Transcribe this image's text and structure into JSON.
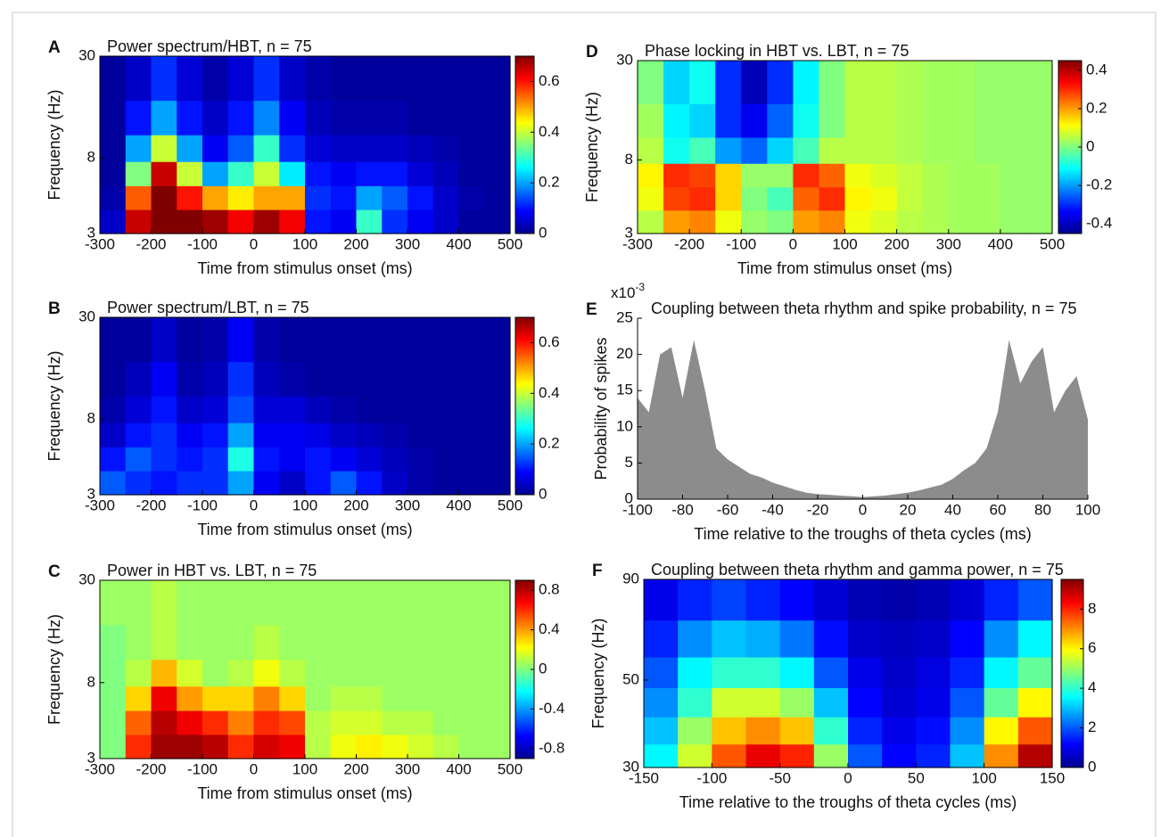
{
  "chart_data": [
    {
      "type": "heatmap",
      "label": "A",
      "title": "Power spectrum/HBT, n = 75",
      "xlabel": "Time from stimulus onset (ms)",
      "ylabel": "Frequency (Hz)",
      "x": [
        -275,
        -225,
        -175,
        -125,
        -75,
        -25,
        25,
        75,
        125,
        175,
        225,
        275,
        325,
        375,
        425,
        475
      ],
      "y": [
        3.5,
        4.8,
        6.5,
        9,
        13,
        22
      ],
      "z": [
        [
          0.05,
          0.65,
          0.7,
          0.7,
          0.68,
          0.62,
          0.68,
          0.62,
          0.1,
          0.08,
          0.3,
          0.12,
          0.08,
          0.05,
          0.02,
          0.02
        ],
        [
          0.03,
          0.55,
          0.7,
          0.6,
          0.5,
          0.45,
          0.5,
          0.5,
          0.12,
          0.1,
          0.2,
          0.15,
          0.1,
          0.05,
          0.03,
          0.02
        ],
        [
          0.02,
          0.35,
          0.65,
          0.4,
          0.2,
          0.3,
          0.4,
          0.25,
          0.1,
          0.08,
          0.1,
          0.1,
          0.06,
          0.04,
          0.02,
          0.02
        ],
        [
          0.02,
          0.2,
          0.4,
          0.2,
          0.08,
          0.15,
          0.3,
          0.12,
          0.06,
          0.05,
          0.05,
          0.05,
          0.04,
          0.03,
          0.02,
          0.02
        ],
        [
          0.02,
          0.1,
          0.2,
          0.1,
          0.05,
          0.1,
          0.18,
          0.08,
          0.04,
          0.03,
          0.03,
          0.03,
          0.02,
          0.02,
          0.02,
          0.02
        ],
        [
          0.02,
          0.05,
          0.12,
          0.06,
          0.03,
          0.06,
          0.12,
          0.05,
          0.03,
          0.02,
          0.02,
          0.02,
          0.02,
          0.02,
          0.02,
          0.02
        ]
      ],
      "xlim": [
        -300,
        500
      ],
      "xticks": [
        -300,
        -200,
        -100,
        0,
        100,
        200,
        300,
        400,
        500
      ],
      "ylim": [
        3,
        30
      ],
      "yticks": [
        3,
        8,
        30
      ],
      "log_y": true,
      "clim": [
        0,
        0.7
      ],
      "cticks": [
        0,
        0.2,
        0.4,
        0.6
      ],
      "colormap": "jet"
    },
    {
      "type": "heatmap",
      "label": "B",
      "title": "Power spectrum/LBT, n = 75",
      "xlabel": "Time from stimulus onset (ms)",
      "ylabel": "Frequency (Hz)",
      "x": [
        -275,
        -225,
        -175,
        -125,
        -75,
        -25,
        25,
        75,
        125,
        175,
        225,
        275,
        325,
        375,
        425,
        475
      ],
      "y": [
        3.5,
        4.8,
        6.5,
        9,
        13,
        22
      ],
      "z": [
        [
          0.15,
          0.12,
          0.1,
          0.12,
          0.12,
          0.2,
          0.08,
          0.05,
          0.1,
          0.15,
          0.1,
          0.05,
          0.03,
          0.02,
          0.02,
          0.02
        ],
        [
          0.1,
          0.15,
          0.12,
          0.1,
          0.12,
          0.28,
          0.1,
          0.08,
          0.1,
          0.08,
          0.06,
          0.04,
          0.03,
          0.02,
          0.02,
          0.02
        ],
        [
          0.05,
          0.1,
          0.12,
          0.08,
          0.1,
          0.2,
          0.08,
          0.08,
          0.07,
          0.05,
          0.04,
          0.03,
          0.02,
          0.02,
          0.02,
          0.02
        ],
        [
          0.03,
          0.06,
          0.1,
          0.05,
          0.06,
          0.14,
          0.06,
          0.06,
          0.04,
          0.03,
          0.02,
          0.02,
          0.02,
          0.02,
          0.02,
          0.02
        ],
        [
          0.02,
          0.04,
          0.08,
          0.03,
          0.04,
          0.12,
          0.04,
          0.03,
          0.02,
          0.02,
          0.02,
          0.02,
          0.02,
          0.02,
          0.02,
          0.02
        ],
        [
          0.02,
          0.02,
          0.05,
          0.02,
          0.03,
          0.08,
          0.03,
          0.02,
          0.02,
          0.02,
          0.02,
          0.02,
          0.02,
          0.02,
          0.02,
          0.02
        ]
      ],
      "xlim": [
        -300,
        500
      ],
      "xticks": [
        -300,
        -200,
        -100,
        0,
        100,
        200,
        300,
        400,
        500
      ],
      "ylim": [
        3,
        30
      ],
      "yticks": [
        3,
        8,
        30
      ],
      "log_y": true,
      "clim": [
        0,
        0.7
      ],
      "cticks": [
        0,
        0.2,
        0.4,
        0.6
      ],
      "colormap": "jet"
    },
    {
      "type": "heatmap",
      "label": "C",
      "title": "Power in HBT vs. LBT, n = 75",
      "xlabel": "Time from stimulus onset (ms)",
      "ylabel": "Frequency (Hz)",
      "x": [
        -275,
        -225,
        -175,
        -125,
        -75,
        -25,
        25,
        75,
        125,
        175,
        225,
        275,
        325,
        375,
        425,
        475
      ],
      "y": [
        3.5,
        4.8,
        6.5,
        9,
        13,
        22
      ],
      "z": [
        [
          0,
          0.6,
          0.85,
          0.85,
          0.8,
          0.6,
          0.75,
          0.7,
          0.1,
          0.2,
          0.25,
          0.2,
          0.15,
          0.1,
          0.05,
          0.05
        ],
        [
          0,
          0.5,
          0.8,
          0.7,
          0.6,
          0.45,
          0.6,
          0.55,
          0.1,
          0.15,
          0.15,
          0.1,
          0.1,
          0.05,
          0.05,
          0.05
        ],
        [
          0,
          0.3,
          0.7,
          0.4,
          0.3,
          0.3,
          0.45,
          0.3,
          0.05,
          0.1,
          0.1,
          0.05,
          0.05,
          0.05,
          0.05,
          0.05
        ],
        [
          0,
          0.1,
          0.35,
          0.15,
          0.05,
          0.1,
          0.2,
          0.1,
          0.05,
          0.05,
          0.05,
          0.05,
          0.05,
          0.05,
          0.05,
          0.05
        ],
        [
          0,
          0.05,
          0.1,
          0.05,
          0.05,
          0.05,
          0.1,
          0.05,
          0.05,
          0.05,
          0.05,
          0.05,
          0.05,
          0.05,
          0.05,
          0.05
        ],
        [
          0.05,
          0.05,
          0.1,
          0.05,
          0.05,
          0.05,
          0.05,
          0.05,
          0.05,
          0.05,
          0.05,
          0.05,
          0.05,
          0.05,
          0.05,
          0.05
        ]
      ],
      "xlim": [
        -300,
        500
      ],
      "xticks": [
        -300,
        -200,
        -100,
        0,
        100,
        200,
        300,
        400,
        500
      ],
      "ylim": [
        3,
        30
      ],
      "yticks": [
        3,
        8,
        30
      ],
      "log_y": true,
      "clim": [
        -0.9,
        0.9
      ],
      "cticks": [
        -0.8,
        -0.4,
        0,
        0.4,
        0.8
      ],
      "colormap": "jet"
    },
    {
      "type": "heatmap",
      "label": "D",
      "title": "Phase locking in HBT vs. LBT, n = 75",
      "xlabel": "Time from stimulus onset (ms)",
      "ylabel": "Frequency (Hz)",
      "x": [
        -275,
        -225,
        -175,
        -125,
        -75,
        -25,
        25,
        75,
        125,
        175,
        225,
        275,
        325,
        375,
        425,
        475
      ],
      "y": [
        3.5,
        4.8,
        6.5,
        9,
        13,
        22
      ],
      "z": [
        [
          0.05,
          0.2,
          0.22,
          0.1,
          0.02,
          0,
          0.2,
          0.22,
          0.1,
          0.08,
          0.05,
          0.04,
          0.03,
          0.03,
          0.02,
          0.02
        ],
        [
          0.1,
          0.28,
          0.3,
          0.15,
          0,
          -0.05,
          0.25,
          0.3,
          0.12,
          0.1,
          0.06,
          0.04,
          0.03,
          0.03,
          0.02,
          0.02
        ],
        [
          0.12,
          0.3,
          0.28,
          0.15,
          0.02,
          0.02,
          0.3,
          0.25,
          0.1,
          0.08,
          0.06,
          0.04,
          0.03,
          0.03,
          0.02,
          0.02
        ],
        [
          0.05,
          -0.1,
          -0.05,
          -0.2,
          -0.25,
          -0.15,
          -0.05,
          0.05,
          0.05,
          0.05,
          0.04,
          0.03,
          0.03,
          0.02,
          0.02,
          0.02
        ],
        [
          0.03,
          -0.12,
          -0.15,
          -0.3,
          -0.35,
          -0.25,
          -0.1,
          0,
          0.05,
          0.05,
          0.04,
          0.03,
          0.03,
          0.02,
          0.02,
          0.02
        ],
        [
          0,
          -0.15,
          -0.1,
          -0.3,
          -0.4,
          -0.3,
          -0.12,
          0,
          0.05,
          0.05,
          0.04,
          0.03,
          0.03,
          0.02,
          0.02,
          0.02
        ]
      ],
      "xlim": [
        -300,
        500
      ],
      "xticks": [
        -300,
        -200,
        -100,
        0,
        100,
        200,
        300,
        400,
        500
      ],
      "ylim": [
        3,
        30
      ],
      "yticks": [
        3,
        8,
        30
      ],
      "log_y": true,
      "clim": [
        -0.45,
        0.45
      ],
      "cticks": [
        -0.4,
        -0.2,
        0,
        0.2,
        0.4
      ],
      "colormap": "jet"
    },
    {
      "type": "area",
      "label": "E",
      "title": "Coupling between theta rhythm and spike probability, n = 75",
      "xlabel": "Time relative to the troughs of theta cycles (ms)",
      "ylabel": "Probability of spikes",
      "y_multiplier": {
        "base": "x10",
        "exponent": "-3"
      },
      "color": "#8c8c8c",
      "x": [
        -100,
        -95,
        -90,
        -85,
        -80,
        -75,
        -70,
        -65,
        -60,
        -55,
        -50,
        -45,
        -40,
        -35,
        -30,
        -25,
        -20,
        -15,
        -10,
        -5,
        0,
        5,
        10,
        15,
        20,
        25,
        30,
        35,
        40,
        45,
        50,
        55,
        60,
        65,
        70,
        75,
        80,
        85,
        90,
        95,
        100
      ],
      "values": [
        14,
        12,
        20,
        21,
        14,
        22,
        15,
        7,
        5.5,
        4.5,
        3.5,
        3,
        2.3,
        1.8,
        1.3,
        0.9,
        0.7,
        0.6,
        0.5,
        0.4,
        0.3,
        0.4,
        0.5,
        0.7,
        0.9,
        1.2,
        1.6,
        2,
        2.8,
        4,
        5,
        7,
        12,
        22,
        16,
        19,
        21,
        12,
        15,
        17,
        11
      ],
      "xlim": [
        -100,
        100
      ],
      "xticks": [
        -100,
        -80,
        -60,
        -40,
        -20,
        0,
        20,
        40,
        60,
        80,
        100
      ],
      "ylim": [
        0,
        25
      ],
      "yticks": [
        0,
        5,
        10,
        15,
        20,
        25
      ]
    },
    {
      "type": "heatmap",
      "label": "F",
      "title": "Coupling between theta rhythm and gamma power, n = 75",
      "xlabel": "Time relative to the troughs of theta cycles (ms)",
      "ylabel": "Frequency (Hz)",
      "x": [
        -137.5,
        -112.5,
        -87.5,
        -62.5,
        -37.5,
        -12.5,
        12.5,
        37.5,
        62.5,
        87.5,
        112.5,
        137.5
      ],
      "y": [
        32,
        37,
        44,
        52,
        63,
        80
      ],
      "z": [
        [
          3.5,
          5.5,
          7.5,
          8.5,
          8,
          5,
          2,
          1.2,
          1.5,
          3,
          7,
          9
        ],
        [
          3,
          5,
          6.5,
          7,
          6.5,
          4,
          1.5,
          1,
          1.3,
          2.5,
          6,
          7.5
        ],
        [
          2.5,
          4,
          5.5,
          5.5,
          5,
          3,
          1.2,
          0.8,
          1,
          2,
          4.5,
          6
        ],
        [
          2,
          3.5,
          4,
          4,
          3.5,
          2,
          1,
          0.7,
          0.9,
          1.5,
          3.5,
          4.5
        ],
        [
          1.5,
          2.5,
          3,
          2.8,
          2.3,
          1.3,
          0.7,
          0.6,
          0.7,
          1.2,
          2.5,
          3.5
        ],
        [
          1,
          1.5,
          1.8,
          1.5,
          1.2,
          0.8,
          0.5,
          0.4,
          0.5,
          0.8,
          1.5,
          2
        ]
      ],
      "xlim": [
        -150,
        150
      ],
      "xticks": [
        -150,
        -100,
        -50,
        0,
        50,
        100,
        150
      ],
      "ylim": [
        30,
        90
      ],
      "yticks": [
        30,
        50,
        90
      ],
      "log_y": true,
      "clim": [
        0,
        9.5
      ],
      "cticks": [
        0,
        2,
        4,
        6,
        8
      ],
      "colormap": "jet"
    }
  ]
}
